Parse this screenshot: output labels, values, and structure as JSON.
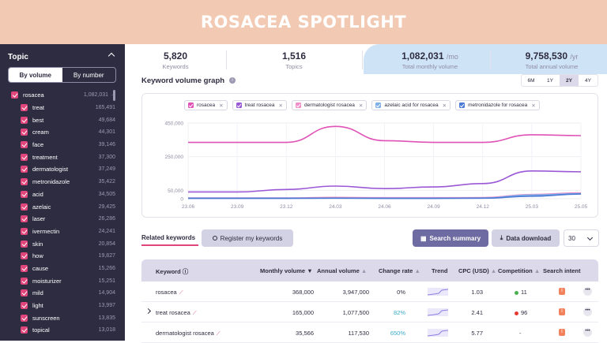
{
  "banner": {
    "title": "ROSACEA SPOTLIGHT"
  },
  "sidebar": {
    "heading": "Topic",
    "toggle": [
      "By volume",
      "By number"
    ],
    "items": [
      {
        "label": "rosacea",
        "value": "1,082,031 →"
      },
      {
        "label": "treat",
        "value": "165,491"
      },
      {
        "label": "best",
        "value": "49,684"
      },
      {
        "label": "cream",
        "value": "44,301"
      },
      {
        "label": "face",
        "value": "39,146"
      },
      {
        "label": "treatment",
        "value": "37,300"
      },
      {
        "label": "dermatologist",
        "value": "37,249"
      },
      {
        "label": "metronidazole",
        "value": "35,422"
      },
      {
        "label": "acid",
        "value": "34,505"
      },
      {
        "label": "azelaic",
        "value": "29,425"
      },
      {
        "label": "laser",
        "value": "26,286"
      },
      {
        "label": "ivermectin",
        "value": "24,241"
      },
      {
        "label": "skin",
        "value": "20,854"
      },
      {
        "label": "how",
        "value": "19,827"
      },
      {
        "label": "cause",
        "value": "15,266"
      },
      {
        "label": "moisturizer",
        "value": "15,251"
      },
      {
        "label": "mild",
        "value": "14,904"
      },
      {
        "label": "light",
        "value": "13,997"
      },
      {
        "label": "sunscreen",
        "value": "13,835"
      },
      {
        "label": "topical",
        "value": "13,018"
      }
    ]
  },
  "stats": [
    {
      "value": "5,820",
      "unit": "",
      "label": "Keywords"
    },
    {
      "value": "1,516",
      "unit": "",
      "label": "Topics"
    },
    {
      "value": "1,082,031",
      "unit": "/mo",
      "label": "Total monthly volume"
    },
    {
      "value": "9,758,530",
      "unit": "/yr",
      "label": "Total annual volume"
    }
  ],
  "graph": {
    "title": "Keyword volume graph",
    "ranges": [
      "6M",
      "1Y",
      "2Y",
      "4Y"
    ],
    "active_range": "2Y"
  },
  "colors": {
    "accent": "#e0457b",
    "purple": "#6e6ba3",
    "banner": "#f2c9b3",
    "sidebar": "#2e2c40"
  },
  "chart_data": {
    "type": "line",
    "x": [
      "23.06",
      "23.09",
      "23.12",
      "24.03",
      "24.06",
      "24.09",
      "24.12",
      "25.03",
      "25.05"
    ],
    "yticks": [
      "450,000",
      "250,000",
      "50,000",
      "0"
    ],
    "ylim": [
      0,
      450000
    ],
    "series": [
      {
        "name": "rosacea",
        "color": "#e052b6",
        "values": [
          335000,
          335000,
          335000,
          430000,
          345000,
          335000,
          335000,
          380000,
          375000
        ]
      },
      {
        "name": "treat rosacea",
        "color": "#9b58d6",
        "values": [
          40000,
          40000,
          55000,
          75000,
          60000,
          70000,
          90000,
          165000,
          160000
        ]
      },
      {
        "name": "dermatologist rosacea",
        "color": "#f08ec8",
        "values": [
          5000,
          5000,
          5000,
          8000,
          6000,
          6000,
          7000,
          25000,
          35000
        ]
      },
      {
        "name": "azelaic acid for rosacea",
        "color": "#7fb0e8",
        "values": [
          3000,
          3000,
          3000,
          4000,
          3000,
          3000,
          4000,
          22000,
          30000
        ]
      },
      {
        "name": "metronidazole for rosacea",
        "color": "#4a7ad6",
        "values": [
          2000,
          2000,
          2000,
          3000,
          2000,
          2000,
          3000,
          15000,
          28000
        ]
      }
    ]
  },
  "controls": {
    "tab_related": "Related keywords",
    "register": "Register my keywords",
    "summary": "Search summary",
    "download": "Data download",
    "page_size": "30"
  },
  "table": {
    "headers": [
      "Keyword",
      "Monthly volume",
      "Annual volume",
      "Change rate",
      "Trend",
      "CPC (USD)",
      "Competition",
      "Search intent"
    ],
    "rows": [
      {
        "keyword": "rosacea",
        "monthly": "368,000",
        "annual": "3,947,000",
        "change": "0%",
        "cpc": "1.03",
        "competition": "11",
        "comp_color": "#4caf50",
        "intent": "I"
      },
      {
        "keyword": "treat rosacea",
        "monthly": "165,000",
        "annual": "1,077,500",
        "change": "82%",
        "cpc": "2.41",
        "competition": "96",
        "comp_color": "#e53935",
        "intent": "I"
      },
      {
        "keyword": "dermatologist rosacea",
        "monthly": "35,566",
        "annual": "117,530",
        "change": "650%",
        "cpc": "5.77",
        "competition": "-",
        "comp_color": "",
        "intent": "I"
      }
    ]
  }
}
